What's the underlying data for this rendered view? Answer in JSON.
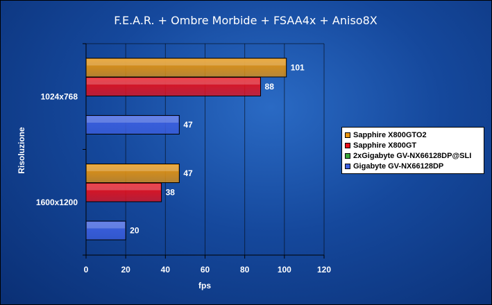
{
  "chart_data": {
    "type": "bar",
    "orientation": "horizontal",
    "title": "F.E.A.R. + Ombre Morbide + FSAA4x + Aniso8X",
    "xlabel": "fps",
    "ylabel": "Risoluzione",
    "xlim": [
      0,
      120
    ],
    "xticks": [
      "0",
      "20",
      "40",
      "60",
      "80",
      "100",
      "120"
    ],
    "grid": true,
    "legend_position": "right",
    "categories": [
      "1024x768",
      "1600x1200"
    ],
    "series": [
      {
        "name": "Sapphire X800GTO2",
        "color": "#e7940e",
        "values": [
          101,
          47
        ]
      },
      {
        "name": "Sapphire X800GT",
        "color": "#e8101a",
        "values": [
          88,
          38
        ]
      },
      {
        "name": "2xGigabyte GV-NX66128DP@SLI",
        "color": "#3aa63a",
        "values": [
          null,
          null
        ]
      },
      {
        "name": "Gigabyte GV-NX66128DP",
        "color": "#3c5fe0",
        "values": [
          47,
          20
        ]
      }
    ]
  }
}
